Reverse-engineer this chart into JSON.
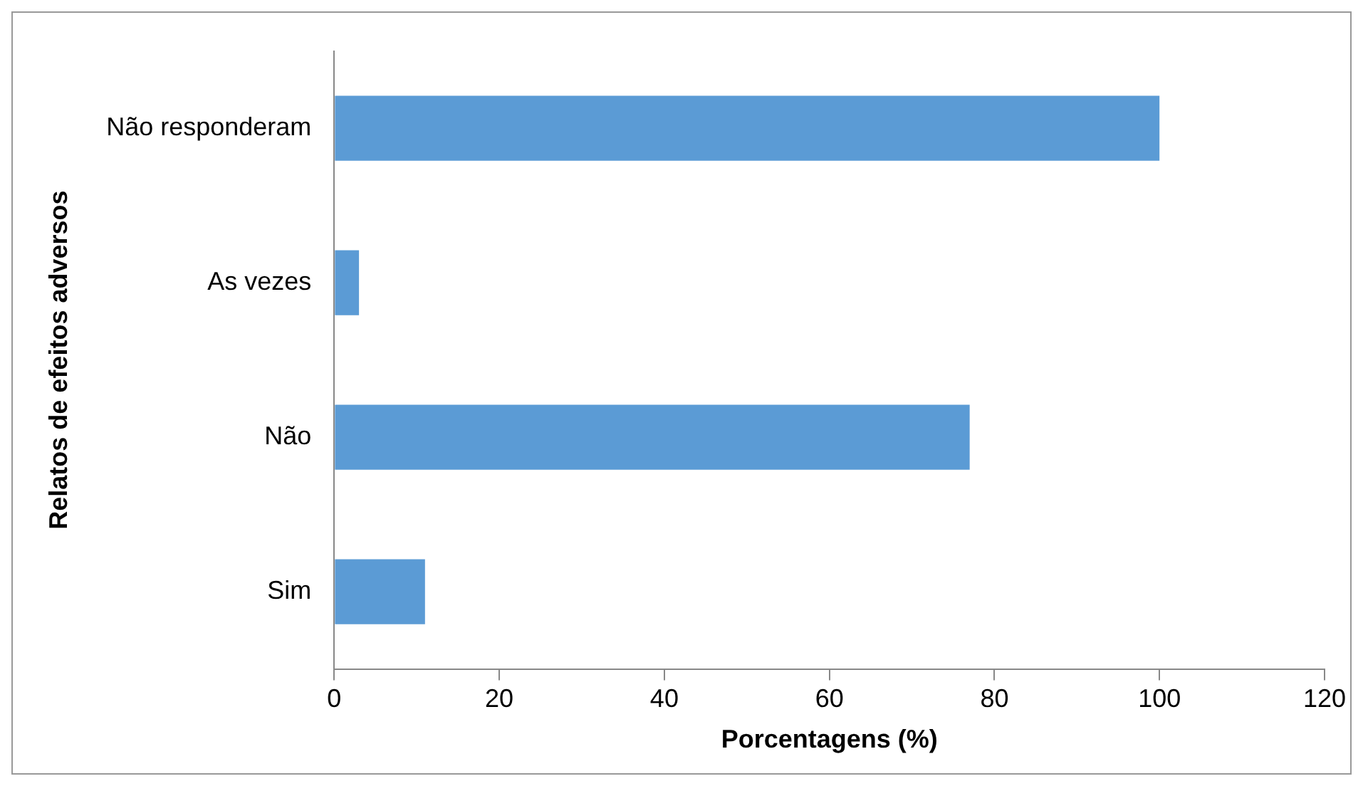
{
  "chart_data": {
    "type": "bar",
    "orientation": "horizontal",
    "categories": [
      "Não responderam",
      "As vezes",
      "Não",
      "Sim"
    ],
    "values": [
      100,
      3,
      77,
      11
    ],
    "color": "#5b9bd5",
    "xlim": [
      0,
      120
    ],
    "xticks": [
      0,
      20,
      40,
      60,
      80,
      100,
      120
    ],
    "xlabel": "Porcentagens (%)",
    "ylabel": "Relatos de efeitos adversos",
    "grid": false,
    "legend": false
  }
}
